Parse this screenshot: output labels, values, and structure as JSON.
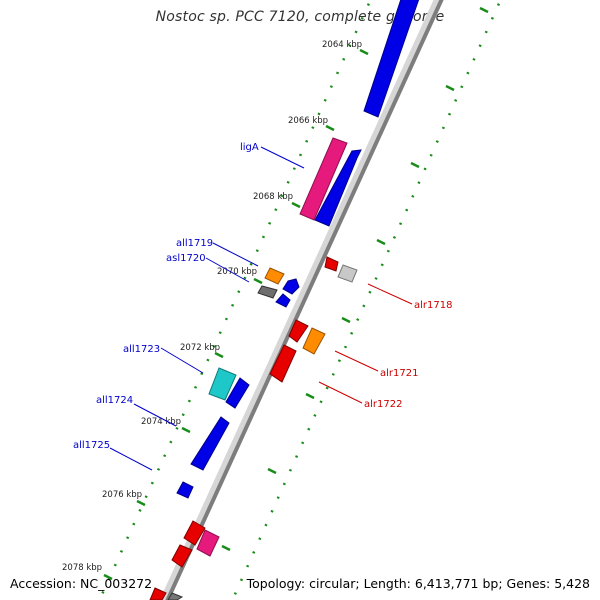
{
  "title": "Nostoc sp. PCC 7120, complete genome",
  "accession": "Accession: NC_003272",
  "summary": "Topology: circular; Length: 6,413,771 bp; Genes: 5,428",
  "colors": {
    "forward_label": "#cc0000",
    "reverse_label": "#0000cc",
    "tick": "#1a7f1a",
    "backbone": "#9a9a9a"
  },
  "ticks": [
    "2064 kbp",
    "2066 kbp",
    "2068 kbp",
    "2070 kbp",
    "2072 kbp",
    "2074 kbp",
    "2076 kbp",
    "2078 kbp"
  ],
  "genes_labeled": [
    {
      "name": "ligA",
      "strand": "reverse"
    },
    {
      "name": "all1719",
      "strand": "reverse"
    },
    {
      "name": "asl1720",
      "strand": "reverse"
    },
    {
      "name": "alr1718",
      "strand": "forward"
    },
    {
      "name": "all1723",
      "strand": "reverse"
    },
    {
      "name": "alr1721",
      "strand": "forward"
    },
    {
      "name": "alr1722",
      "strand": "forward"
    },
    {
      "name": "all1724",
      "strand": "reverse"
    },
    {
      "name": "all1725",
      "strand": "reverse"
    }
  ]
}
